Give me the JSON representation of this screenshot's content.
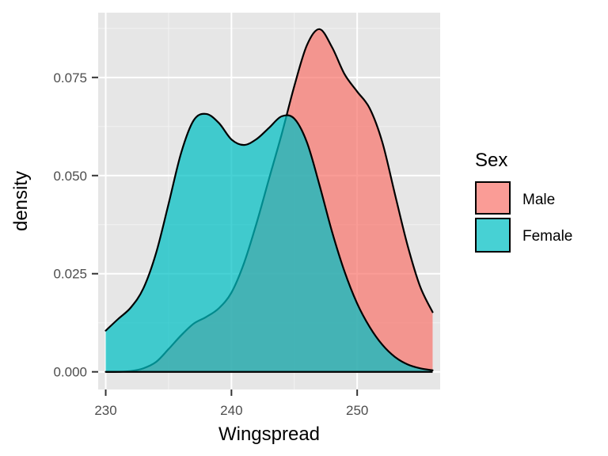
{
  "chart_data": {
    "type": "area",
    "xlabel": "Wingspread",
    "ylabel": "density",
    "xlim": [
      229.4,
      256.6
    ],
    "ylim": [
      -0.0045,
      0.0915
    ],
    "x_ticks": [
      230,
      240,
      250
    ],
    "x_tick_labels": [
      "230",
      "240",
      "250"
    ],
    "y_ticks": [
      0.0,
      0.025,
      0.05,
      0.075
    ],
    "y_tick_labels": [
      "0.000",
      "0.025",
      "0.050",
      "0.075"
    ],
    "grid": true,
    "legend": {
      "title": "Sex",
      "placement": "right",
      "entries": [
        "Male",
        "Female"
      ]
    },
    "series": [
      {
        "name": "Male",
        "color": "#F8766D",
        "x": [
          230,
          231,
          232,
          233,
          234,
          235,
          236,
          237,
          238,
          239,
          240,
          241,
          242,
          243,
          244,
          245,
          246,
          247,
          248,
          249,
          250,
          251,
          252,
          253,
          254,
          255,
          256
        ],
        "values": [
          0.0,
          0.0,
          0.0002,
          0.0009,
          0.0025,
          0.0058,
          0.0093,
          0.0123,
          0.014,
          0.0162,
          0.0202,
          0.0277,
          0.0379,
          0.0493,
          0.0606,
          0.0728,
          0.0832,
          0.0873,
          0.0827,
          0.0758,
          0.0714,
          0.0671,
          0.0585,
          0.0453,
          0.0323,
          0.0218,
          0.0152
        ]
      },
      {
        "name": "Female",
        "color": "#00BFC4",
        "x": [
          230,
          231,
          232,
          233,
          234,
          235,
          236,
          237,
          238,
          239,
          240,
          241,
          242,
          243,
          244,
          245,
          246,
          247,
          248,
          249,
          250,
          251,
          252,
          253,
          254,
          255,
          256
        ],
        "values": [
          0.0105,
          0.0135,
          0.0164,
          0.0213,
          0.0302,
          0.0428,
          0.0558,
          0.0641,
          0.0657,
          0.0634,
          0.0592,
          0.0578,
          0.0593,
          0.0622,
          0.0651,
          0.0645,
          0.0585,
          0.0476,
          0.0357,
          0.0255,
          0.0174,
          0.0114,
          0.0069,
          0.0038,
          0.0019,
          0.0009,
          0.0004
        ]
      }
    ]
  }
}
